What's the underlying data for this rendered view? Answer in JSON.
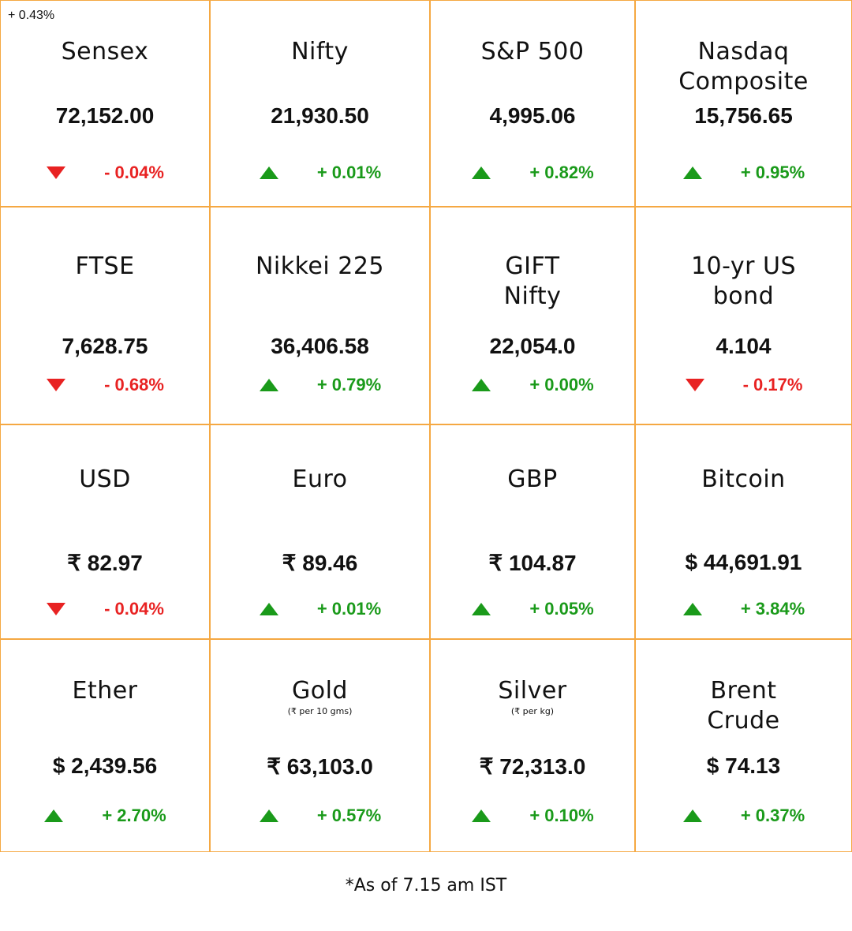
{
  "corner_note": "+ 0.43%",
  "cells": [
    {
      "name_lines": [
        "Sensex"
      ],
      "value": "72,152.00",
      "change": "- 0.04%",
      "direction": "down"
    },
    {
      "name_lines": [
        "Nifty"
      ],
      "value": "21,930.50",
      "change": "+ 0.01%",
      "direction": "up"
    },
    {
      "name_lines": [
        "S&P 500"
      ],
      "value": "4,995.06",
      "change": "+ 0.82%",
      "direction": "up"
    },
    {
      "name_lines": [
        "Nasdaq",
        "Composite"
      ],
      "value": "15,756.65",
      "change": "+ 0.95%",
      "direction": "up"
    },
    {
      "name_lines": [
        "FTSE"
      ],
      "value": "7,628.75",
      "change": "- 0.68%",
      "direction": "down"
    },
    {
      "name_lines": [
        "Nikkei 225"
      ],
      "value": "36,406.58",
      "change": "+ 0.79%",
      "direction": "up"
    },
    {
      "name_lines": [
        "GIFT",
        "Nifty"
      ],
      "value": "22,054.0",
      "change": "+ 0.00%",
      "direction": "up"
    },
    {
      "name_lines": [
        "10-yr US",
        "bond"
      ],
      "value": "4.104",
      "change": "- 0.17%",
      "direction": "down"
    },
    {
      "name_lines": [
        "USD"
      ],
      "value": "₹ 82.97",
      "change": "- 0.04%",
      "direction": "down"
    },
    {
      "name_lines": [
        "Euro"
      ],
      "value": "₹ 89.46",
      "change": "+ 0.01%",
      "direction": "up"
    },
    {
      "name_lines": [
        "GBP"
      ],
      "value": "₹ 104.87",
      "change": "+ 0.05%",
      "direction": "up"
    },
    {
      "name_lines": [
        "Bitcoin"
      ],
      "value": "$ 44,691.91",
      "change": "+ 3.84%",
      "direction": "up"
    },
    {
      "name_lines": [
        "Ether"
      ],
      "value": "$ 2,439.56",
      "change": "+ 2.70%",
      "direction": "up"
    },
    {
      "name_lines": [
        "Gold"
      ],
      "subtitle": "(₹ per 10 gms)",
      "value": "₹ 63,103.0",
      "change": "+ 0.57%",
      "direction": "up"
    },
    {
      "name_lines": [
        "Silver"
      ],
      "subtitle": "(₹ per kg)",
      "value": "₹ 72,313.0",
      "change": "+ 0.10%",
      "direction": "up"
    },
    {
      "name_lines": [
        "Brent",
        "Crude"
      ],
      "value": "$ 74.13",
      "change": "+ 0.37%",
      "direction": "up"
    }
  ],
  "footnote": "*As of 7.15 am IST"
}
